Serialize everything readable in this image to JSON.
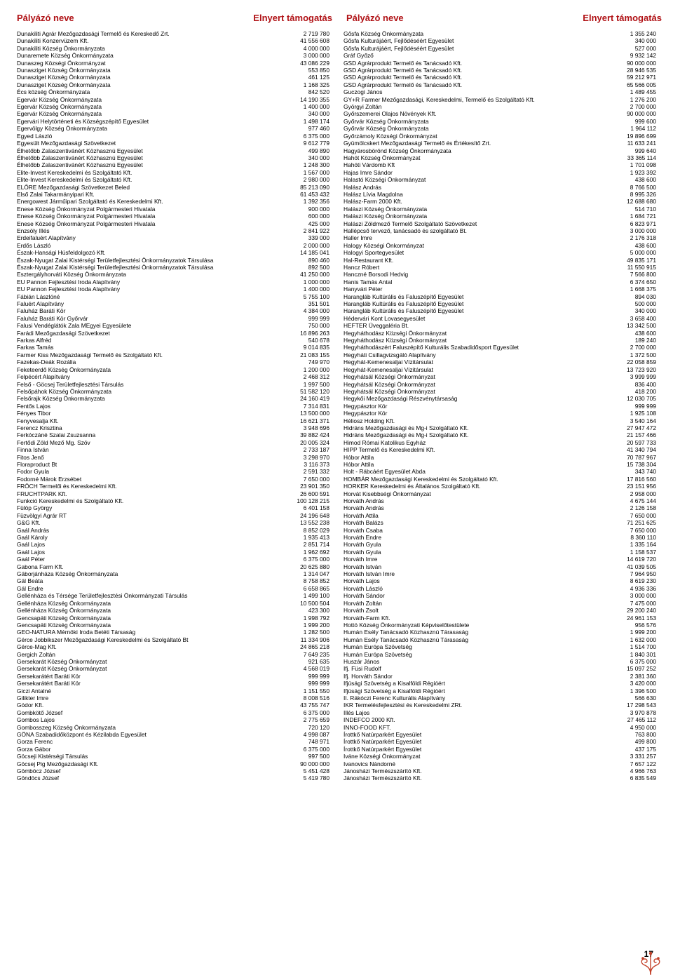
{
  "header": {
    "name_label": "Pályázó neve",
    "amount_label": "Elnyert támogatás"
  },
  "page_number": "17",
  "left": [
    {
      "n": "Dunakiliti Agrár Mezőgazdasági Termelő és Kereskedő Zrt.",
      "a": "2 719 780"
    },
    {
      "n": "Dunakiliti Konzervüzem Kft.",
      "a": "41 556 608"
    },
    {
      "n": "Dunakiliti Község Önkormányzata",
      "a": "4 000 000"
    },
    {
      "n": "Dunaremete Község Önkormányzata",
      "a": "3 000 000"
    },
    {
      "n": "Dunaszeg Községi Önkormányzat",
      "a": "43 086 229"
    },
    {
      "n": "Dunasziget Község Önkormányzata",
      "a": "553 850"
    },
    {
      "n": "Dunasziget Község Önkormányzata",
      "a": "461 125"
    },
    {
      "n": "Dunasziget Község Önkormányzata",
      "a": "1 168 325"
    },
    {
      "n": "Écs község Önkormányzata",
      "a": "842 520"
    },
    {
      "n": "Egervár Község Önkormányzata",
      "a": "14 190 355"
    },
    {
      "n": "Egervár Község Önkormányzata",
      "a": "1 400 000"
    },
    {
      "n": "Egervár Község Önkormányzata",
      "a": "340 000"
    },
    {
      "n": "Egervári Helytörténeti és Községszépítő Egyesület",
      "a": "1 498 174"
    },
    {
      "n": "Egervölgy Község Önkormányzata",
      "a": "977 460"
    },
    {
      "n": "Egyed László",
      "a": "6 375 000"
    },
    {
      "n": "Egyesült Mezőgazdasági Szövetkezet",
      "a": "9 612 779"
    },
    {
      "n": "Élhetőbb Zalaszentivánért Közhasznú Egyesület",
      "a": "499 890"
    },
    {
      "n": "Élhetőbb Zalaszentivánért Közhasznú Egyesület",
      "a": "340 000"
    },
    {
      "n": "Élhetőbb Zalaszentivánért Közhasznú Egyesület",
      "a": "1 248 300"
    },
    {
      "n": "Elite-Invest Kereskedelmi és Szolgáltató Kft.",
      "a": "1 567 000"
    },
    {
      "n": "Elite-Invest Kereskedelmi és Szolgáltató Kft.",
      "a": "2 980 000"
    },
    {
      "n": "ELŐRE Mezőgazdasági Szövetkezet Beled",
      "a": "85 213 090"
    },
    {
      "n": "Első Zalai Takarmányipari Kft.",
      "a": "61 453 432"
    },
    {
      "n": "Energowest Járműipari Szolgáltató és Kereskedelmi Kft.",
      "a": "1 392 356"
    },
    {
      "n": "Enese Község Önkormányzat Polgármesteri Hivatala",
      "a": "900 000"
    },
    {
      "n": "Enese Község Önkormányzat Polgármesteri Hivatala",
      "a": "600 000"
    },
    {
      "n": "Enese Község Önkormányzat Polgármesteri Hivatala",
      "a": "425 000"
    },
    {
      "n": "Enzsöly Illés",
      "a": "2 841 922"
    },
    {
      "n": "Erdeifaluért Alapítvány",
      "a": "339 000"
    },
    {
      "n": "Erdős László",
      "a": "2 000 000"
    },
    {
      "n": "Észak-Hansági Húsfeldolgozó Kft.",
      "a": "14 185 041"
    },
    {
      "n": "Észak-Nyugat Zalai Kistérségi Területfejlesztési Önkormányzatok Társulása",
      "a": "890 460"
    },
    {
      "n": "Észak-Nyugat Zalai Kistérségi Területfejlesztési Önkormányzatok Társulása",
      "a": "892 500"
    },
    {
      "n": "Esztergályhorváti Község Önkormányzata",
      "a": "41 250 000"
    },
    {
      "n": "EU Pannon Fejlesztési Iroda Alapítvány",
      "a": "1 000 000"
    },
    {
      "n": "EU Pannon Fejlesztési Iroda Alapítvány",
      "a": "1 400 000"
    },
    {
      "n": "Fábián Lászlóné",
      "a": "5 755 100"
    },
    {
      "n": "Faluért Alapítvány",
      "a": "351 501"
    },
    {
      "n": "Faluház Baráti Kör",
      "a": "4 384 000"
    },
    {
      "n": "Faluház Baráti Kör Győrvár",
      "a": "999 999"
    },
    {
      "n": "Falusi Vendéglátók Zala MEgyei Egyesülete",
      "a": "750 000"
    },
    {
      "n": "Farádi Mezőgazdasági Szövetkezet",
      "a": "16 896 263"
    },
    {
      "n": "Farkas Alfréd",
      "a": "540 678"
    },
    {
      "n": "Farkas Tamás",
      "a": "9 014 835"
    },
    {
      "n": "Farmer Kiss Mezőgazdasági Termelő és Szolgáltató Kft.",
      "a": "21 083 155"
    },
    {
      "n": "Fazekas-Deák Rozália",
      "a": "749 970"
    },
    {
      "n": "Feketeerdő Község Önkormányzata",
      "a": "1 200 000"
    },
    {
      "n": "Felpécért Alapítvány",
      "a": "2 468 312"
    },
    {
      "n": "Felső - Göcsej Területfejlesztési Társulás",
      "a": "1 997 500"
    },
    {
      "n": "Felsőpáhok Község Önkormányzata",
      "a": "51 582 120"
    },
    {
      "n": "Felsőrajk Község Önkormányzata",
      "a": "24 160 419"
    },
    {
      "n": "Fentős Lajos",
      "a": "7 314 831"
    },
    {
      "n": "Fényes Tibor",
      "a": "13 500 000"
    },
    {
      "n": "Fenyvesalja Kft.",
      "a": "16 621 371"
    },
    {
      "n": "Ferencz Krisztina",
      "a": "3 948 696"
    },
    {
      "n": "Ferkóczáné Szalai Zsuzsanna",
      "a": "39 882 424"
    },
    {
      "n": "Fertődi Zöld Mező Mg. Szöv",
      "a": "20 005 324"
    },
    {
      "n": "Finna István",
      "a": "2 733 187"
    },
    {
      "n": "Fitos Jenő",
      "a": "3 298 970"
    },
    {
      "n": "Floraproduct Bt",
      "a": "3 116 373"
    },
    {
      "n": "Fodor Gyula",
      "a": "2 591 332"
    },
    {
      "n": "Fodorné Márok Erzsébet",
      "a": "7 650 000"
    },
    {
      "n": "FRÖCH Termelői és Kereskedelmi Kft.",
      "a": "23 901 350"
    },
    {
      "n": "FRUCHTPARK Kft.",
      "a": "26 600 591"
    },
    {
      "n": "Funkció Kereskedelmi és Szolgáltató Kft.",
      "a": "100 128 215"
    },
    {
      "n": "Fülöp György",
      "a": "6 401 158"
    },
    {
      "n": "Füzvölgyi Agrár RT",
      "a": "24 196 648"
    },
    {
      "n": "G&G Kft.",
      "a": "13 552 238"
    },
    {
      "n": "Gaál András",
      "a": "8 852 029"
    },
    {
      "n": "Gaál Károly",
      "a": "1 935 413"
    },
    {
      "n": "Gaál Lajos",
      "a": "2 851 714"
    },
    {
      "n": "Gaál Lajos",
      "a": "1 962 692"
    },
    {
      "n": "Gaál Péter",
      "a": "6 375 000"
    },
    {
      "n": "Gabona Farm Kft.",
      "a": "20 625 880"
    },
    {
      "n": "Gáborjánháza Község Önkormányzata",
      "a": "1 314 047"
    },
    {
      "n": "Gál Beáta",
      "a": "8 758 852"
    },
    {
      "n": "Gál Endre",
      "a": "6 658 865"
    },
    {
      "n": "Gellénháza és Térsége Területfejlesztési Önkormányzati Társulás",
      "a": "1 499 100"
    },
    {
      "n": "Gellénháza Község Önkormányzata",
      "a": "10 500 504"
    },
    {
      "n": "Gellénháza Község Önkormányzata",
      "a": "423 300"
    },
    {
      "n": "Gencsapáti Község Önkormányzata",
      "a": "1 998 792"
    },
    {
      "n": "Gencsapáti Község Önkormányzata",
      "a": "1 999 200"
    },
    {
      "n": "GEO-NATURA Mérnöki Iroda Betéti Társaság",
      "a": "1 282 500"
    },
    {
      "n": "Gérce Jobbikszer Mezőgazdasági Kereskedelmi és Szolgáltató Bt",
      "a": "11 334 906"
    },
    {
      "n": "Gérce-Mag Kft.",
      "a": "24 865 218"
    },
    {
      "n": "Gergich Zoltán",
      "a": "7 649 235"
    },
    {
      "n": "Gersekarát Község Önkormányzat",
      "a": "921 635"
    },
    {
      "n": "Gersekarát Község Önkormányzat",
      "a": "4 568 019"
    },
    {
      "n": "Gersekarátért Baráti Kör",
      "a": "999 999"
    },
    {
      "n": "Gersekarátért Baráti Kör",
      "a": "999 999"
    },
    {
      "n": "Giczi Antalné",
      "a": "1 151 550"
    },
    {
      "n": "Gilikter Imre",
      "a": "8 008 516"
    },
    {
      "n": "Gódor Kft.",
      "a": "43 755 747"
    },
    {
      "n": "Gombkötő József",
      "a": "6 375 000"
    },
    {
      "n": "Gombos Lajos",
      "a": "2 775 659"
    },
    {
      "n": "Gombosszeg Község Önkormányzata",
      "a": "720 120"
    },
    {
      "n": "GÖNA Szabadidőközpont és Kézilabda Egyesület",
      "a": "4 998 087"
    },
    {
      "n": "Gorza Ferenc",
      "a": "748 971"
    },
    {
      "n": "Gorza Gábor",
      "a": "6 375 000"
    },
    {
      "n": "Göcseji Kistérségi Társulás",
      "a": "997 500"
    },
    {
      "n": "Göcsej Pig Mezőgazdasági Kft.",
      "a": "90 000 000"
    },
    {
      "n": "Gömböcz József",
      "a": "5 451 428"
    },
    {
      "n": "Göndöcs József",
      "a": "5 419 780"
    }
  ],
  "right": [
    {
      "n": "Gősfa Község Önkormányzata",
      "a": "1 355 240"
    },
    {
      "n": "Gősfa Kulturájáért, Fejlődéséért Egyesület",
      "a": "340 000"
    },
    {
      "n": "Gősfa Kulturájáért, Fejlődéséért Egyesület",
      "a": "527 000"
    },
    {
      "n": "Gráf Győző",
      "a": "9 932 142"
    },
    {
      "n": "GSD Agrárprodukt Termelő és Tanácsadó Kft.",
      "a": "90 000 000"
    },
    {
      "n": "GSD Agrárprodukt Termelő és Tanácsadó Kft.",
      "a": "28 946 535"
    },
    {
      "n": "GSD Agrárprodukt Termelő és Tanácsadó Kft.",
      "a": "59 212 971"
    },
    {
      "n": "GSD Agrárprodukt Termelő és Tanácsadó Kft.",
      "a": "65 566 005"
    },
    {
      "n": "Guczogi János",
      "a": "1 489 455"
    },
    {
      "n": "GY+R Farmer Mezőgazdasági, Kereskedelmi, Termelő és Szolgáltató Kft.",
      "a": "1 276 200"
    },
    {
      "n": "Györgyi Zoltán",
      "a": "2 700 000"
    },
    {
      "n": "Győrszemerei Olajos Növények Kft.",
      "a": "90 000 000"
    },
    {
      "n": "Győrvár Község Önkormányzata",
      "a": "999 600"
    },
    {
      "n": "Győrvár Község Önkormányzata",
      "a": "1 964 112"
    },
    {
      "n": "Győrzámoly Községi Önkormányzat",
      "a": "19 896 699"
    },
    {
      "n": "Gyümölcskert Mezőgazdasági Termelő és Értékesítő Zrt.",
      "a": "11 633 241"
    },
    {
      "n": "Hagyárosbörönd Község Önkormányzata",
      "a": "999 640"
    },
    {
      "n": "Hahót Község Önkormányzat",
      "a": "33 365 114"
    },
    {
      "n": "Hahóti Várdomb Kft",
      "a": "1 701 098"
    },
    {
      "n": "Hajas Imre Sándor",
      "a": "1 923 392"
    },
    {
      "n": "Halastó Községi Önkormányzat",
      "a": "438 600"
    },
    {
      "n": "Halász András",
      "a": "8 766 500"
    },
    {
      "n": "Halász Lívia Magdolna",
      "a": "8 995 326"
    },
    {
      "n": "Halász-Farm 2000 Kft.",
      "a": "12 688 680"
    },
    {
      "n": "Halászi Község Önkormányzata",
      "a": "514 710"
    },
    {
      "n": "Halászi Község Önkormányzata",
      "a": "1 684 721"
    },
    {
      "n": "Halászi Zöldmező Termelő Szolgáltató Szövetkezet",
      "a": "6 823 971"
    },
    {
      "n": "Hallépcső tervező, tanácsadó és szolgáltató Bt.",
      "a": "3 000 000"
    },
    {
      "n": "Haller Imre",
      "a": "2 176 318"
    },
    {
      "n": "Halogy Községi Önkormányzat",
      "a": "438 600"
    },
    {
      "n": "Halogyi Sportegyesület",
      "a": "5 000 000"
    },
    {
      "n": "Hal-Restaurant Kft.",
      "a": "49 835 171"
    },
    {
      "n": "Hancz Róbert",
      "a": "11 550 915"
    },
    {
      "n": "Hanczné Borsodi Hedvig",
      "a": "7 566 800"
    },
    {
      "n": "Hanis Tamás Antal",
      "a": "6 374 650"
    },
    {
      "n": "Hanyvári Péter",
      "a": "1 668 375"
    },
    {
      "n": "Harangláb Kultúrális és Faluszépítő Egyesület",
      "a": "894 030"
    },
    {
      "n": "Harangláb Kultúrális és Faluszépítő Egyesület",
      "a": "500 000"
    },
    {
      "n": "Harangláb Kultúrális és Faluszépítő Egyesület",
      "a": "340 000"
    },
    {
      "n": "Hédervári Kont Lovasegyesület",
      "a": "3 658 400"
    },
    {
      "n": "HEFTER Üveggaléria Bt.",
      "a": "13 342 500"
    },
    {
      "n": "Hegyháthodász Községi Önkormányzat",
      "a": "438 600"
    },
    {
      "n": "Hegyháthodász Községi Önkormányzat",
      "a": "189 240"
    },
    {
      "n": "Hegyháthodászért Faluszépítő Kulturális Szabadidősport Egyesület",
      "a": "2 700 000"
    },
    {
      "n": "Hegyháti Csillagvizsgáló Alapítvány",
      "a": "1 372 500"
    },
    {
      "n": "Hegyhát-Kemenesaljai Vízitársulat",
      "a": "22 058 859"
    },
    {
      "n": "Hegyhát-Kemenesaljai Vízitársulat",
      "a": "13 723 920"
    },
    {
      "n": "Hegyhátsál Községi Önkormányzat",
      "a": "3 999 999"
    },
    {
      "n": "Hegyhátsál Községi Önkormányzat",
      "a": "836 400"
    },
    {
      "n": "Hegyhátsál Községi Önkormányzat",
      "a": "418 200"
    },
    {
      "n": "Hegykői Mezőgazdasági Részvénytársaság",
      "a": "12 030 705"
    },
    {
      "n": "Hegypásztor Kör",
      "a": "999 999"
    },
    {
      "n": "Hegypásztor Kör",
      "a": "1 925 108"
    },
    {
      "n": "Héliosz Holding Kft.",
      "a": "3 540 164"
    },
    {
      "n": "Hidráns Mezőgazdasági és Mg-i Szolgáltató Kft.",
      "a": "27 947 472"
    },
    {
      "n": "Hidráns Mezőgazdasági és Mg-i Szolgáltató Kft.",
      "a": "21 157 466"
    },
    {
      "n": "Himod Római Katolikus Egyház",
      "a": "20 597 733"
    },
    {
      "n": "HIPP Termelő és Kereskedelmi Kft.",
      "a": "41 340 794"
    },
    {
      "n": "Hóbor Attila",
      "a": "70 787 967"
    },
    {
      "n": "Hóbor Attila",
      "a": "15 738 304"
    },
    {
      "n": "Holt - Rábcáért Egyesület Abda",
      "a": "343 740"
    },
    {
      "n": "HOMBÁR Mezőgazdasági Kereskedelmi és Szolgáltató Kft.",
      "a": "17 816 560"
    },
    {
      "n": "HORKER Kereskedelmi és Általános Szolgáltató Kft.",
      "a": "23 151 956"
    },
    {
      "n": "Horvát Kisebbségi Önkormányzat",
      "a": "2 958 000"
    },
    {
      "n": "Horváth András",
      "a": "4 675 144"
    },
    {
      "n": "Horváth András",
      "a": "2 126 158"
    },
    {
      "n": "Horváth Attila",
      "a": "7 650 000"
    },
    {
      "n": "Horváth Balázs",
      "a": "71 251 625"
    },
    {
      "n": "Horváth Csaba",
      "a": "7 650 000"
    },
    {
      "n": "Horváth Endre",
      "a": "8 360 110"
    },
    {
      "n": "Horváth Gyula",
      "a": "1 335 164"
    },
    {
      "n": "Horváth Gyula",
      "a": "1 158 537"
    },
    {
      "n": "Horváth Imre",
      "a": "14 619 720"
    },
    {
      "n": "Horváth István",
      "a": "41 039 505"
    },
    {
      "n": "Horváth István Imre",
      "a": "7 964 950"
    },
    {
      "n": "Horváth Lajos",
      "a": "8 619 230"
    },
    {
      "n": "Horváth László",
      "a": "4 936 336"
    },
    {
      "n": "Horváth Sándor",
      "a": "3 000 000"
    },
    {
      "n": "Horváth Zoltán",
      "a": "7 475 000"
    },
    {
      "n": "Horváth Zsolt",
      "a": "29 200 240"
    },
    {
      "n": "Horváth-Farm Kft.",
      "a": "24 961 153"
    },
    {
      "n": "Hottó Község Önkormányzati Képviselőtestülete",
      "a": "956 576"
    },
    {
      "n": "Humán Esély Tanácsadó Közhasznú Tárasaság",
      "a": "1 999 200"
    },
    {
      "n": "Humán Esély Tanácsadó Közhasznú Tárasaság",
      "a": "1 632 000"
    },
    {
      "n": "Humán Európa Szövetség",
      "a": "1 514 700"
    },
    {
      "n": "Humán Európa Szövetség",
      "a": "1 840 301"
    },
    {
      "n": "Huszár János",
      "a": "6 375 000"
    },
    {
      "n": "Ifj. Füsi Rudolf",
      "a": "15 097 252"
    },
    {
      "n": "Ifj. Horváth Sándor",
      "a": "2 381 360"
    },
    {
      "n": "Ifjúsági Szövetség a Kisalföldi Régióért",
      "a": "3 420 000"
    },
    {
      "n": "Ifjúsági Szövetség a Kisalföldi Régióért",
      "a": "1 396 500"
    },
    {
      "n": "II. Rákóczi Ferenc Kulturális Alapítvány",
      "a": "566 630"
    },
    {
      "n": "IKR Termelésfejlesztési és Kereskedelmi ZRt.",
      "a": "17 298 543"
    },
    {
      "n": "Illés Lajos",
      "a": "3 970 878"
    },
    {
      "n": "INDEFCO 2000 Kft.",
      "a": "27 465 112"
    },
    {
      "n": "INNO-FOOD KFT.",
      "a": "4 950 000"
    },
    {
      "n": "Írottkő Natúrparkért Egyesület",
      "a": "763 800"
    },
    {
      "n": "Írottkő Natúrparkért Egyesület",
      "a": "499 800"
    },
    {
      "n": "Írottkő Natúrparkért Egyesület",
      "a": "437 175"
    },
    {
      "n": "Iváne Községi Önkormányzat",
      "a": "3 331 257"
    },
    {
      "n": "Ivanovics Nándorné",
      "a": "7 657 122"
    },
    {
      "n": "Jánosházi Természszárító Kft.",
      "a": "4 966 763"
    },
    {
      "n": "Jánosházi Természszárító Kft.",
      "a": "6 835 549"
    }
  ]
}
